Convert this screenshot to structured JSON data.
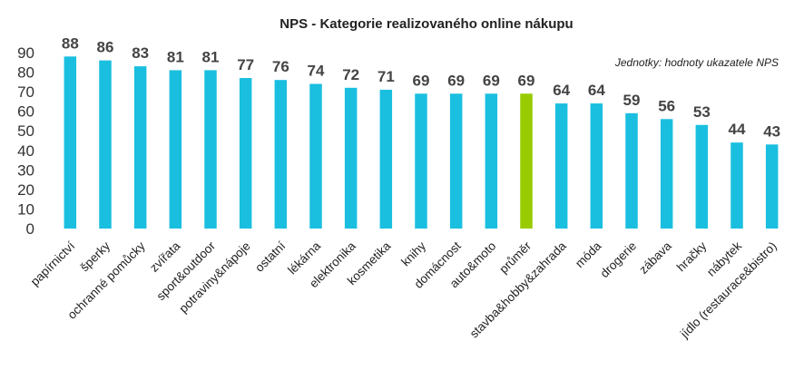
{
  "chart_data": {
    "type": "bar",
    "title": "NPS - Kategorie realizovaného online nákupu",
    "note": "Jednotky: hodnoty ukazatele NPS",
    "categories": [
      "papírnictví",
      "šperky",
      "ochranné pomůcky",
      "zvířata",
      "sport&outdoor",
      "potraviny&nápoje",
      "ostatní",
      "lékárna",
      "elektronika",
      "kosmetika",
      "knihy",
      "domácnost",
      "auto&moto",
      "průměr",
      "stavba&hobby&zahrada",
      "móda",
      "drogerie",
      "zábava",
      "hračky",
      "nábytek",
      "jídlo (restaurace&bistro)"
    ],
    "values": [
      88,
      86,
      83,
      81,
      81,
      77,
      76,
      74,
      72,
      71,
      69,
      69,
      69,
      69,
      64,
      64,
      59,
      56,
      53,
      44,
      43
    ],
    "data_labels": [
      "88",
      "86",
      "83",
      "81",
      "81",
      "77",
      "76",
      "74",
      "72",
      "71",
      "69",
      "69",
      "69",
      "69",
      "64",
      "64",
      "59",
      "56",
      "53",
      "44",
      "43"
    ],
    "ylim": [
      0,
      90
    ],
    "yticks": [
      0,
      10,
      20,
      30,
      40,
      50,
      60,
      70,
      80,
      90
    ],
    "ytick_labels": [
      "0",
      "10",
      "20",
      "30",
      "40",
      "50",
      "60",
      "70",
      "80",
      "90"
    ],
    "xlabel": "",
    "ylabel": "",
    "grid": false,
    "colors": {
      "bar": "#1ABFE0",
      "highlight": "#99CC00",
      "highlight_category": "průměr"
    }
  }
}
